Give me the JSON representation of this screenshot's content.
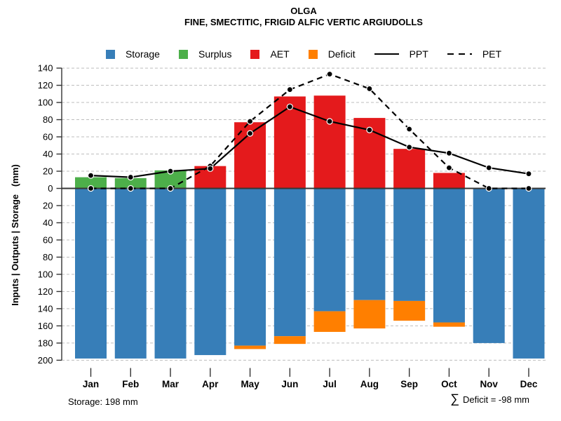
{
  "header": {
    "title": "OLGA",
    "subtitle": "FINE, SMECTITIC, FRIGID ALFIC VERTIC ARGIUDOLLS"
  },
  "legend": {
    "items": [
      {
        "label": "Storage",
        "swatch": "square",
        "color": "#377EB8"
      },
      {
        "label": "Surplus",
        "swatch": "square",
        "color": "#4DAF4A"
      },
      {
        "label": "AET",
        "swatch": "square",
        "color": "#E41A1C"
      },
      {
        "label": "Deficit",
        "swatch": "square",
        "color": "#FF7F00"
      },
      {
        "label": "PPT",
        "swatch": "solid-line",
        "color": "#000000"
      },
      {
        "label": "PET",
        "swatch": "dashed-line",
        "color": "#000000"
      }
    ]
  },
  "footer": {
    "left": "Storage: 198 mm",
    "right_sigma": "∑",
    "right_text": "Deficit = -98 mm"
  },
  "chart_data": {
    "type": "bar",
    "subtype": "diverging-stacked-bars-with-lines",
    "categories": [
      "Jan",
      "Feb",
      "Mar",
      "Apr",
      "May",
      "Jun",
      "Jul",
      "Aug",
      "Sep",
      "Oct",
      "Nov",
      "Dec"
    ],
    "series": [
      {
        "name": "AET",
        "direction": "up",
        "stack_order": 0,
        "color": "#E41A1C",
        "values": [
          0,
          0,
          0,
          26,
          77,
          107,
          108,
          82,
          46,
          18,
          0,
          0
        ]
      },
      {
        "name": "Surplus",
        "direction": "up",
        "stack_order": 1,
        "color": "#4DAF4A",
        "values": [
          13,
          12,
          21,
          0,
          0,
          0,
          0,
          0,
          0,
          0,
          0,
          0
        ]
      },
      {
        "name": "Storage",
        "direction": "down",
        "stack_order": 0,
        "color": "#377EB8",
        "values": [
          198,
          198,
          198,
          194,
          183,
          172,
          143,
          130,
          131,
          156,
          180,
          198
        ]
      },
      {
        "name": "Deficit",
        "direction": "down",
        "stack_order": 1,
        "color": "#FF7F00",
        "values": [
          0,
          0,
          0,
          0,
          4,
          9,
          24,
          33,
          23,
          5,
          0,
          0
        ]
      }
    ],
    "lines": [
      {
        "name": "PPT",
        "style": "solid",
        "color": "#000000",
        "values": [
          15,
          13,
          20,
          23,
          64,
          95,
          78,
          68,
          48,
          41,
          24,
          17
        ]
      },
      {
        "name": "PET",
        "style": "dashed",
        "color": "#000000",
        "values": [
          0,
          0,
          0,
          26,
          78,
          115,
          133,
          116,
          69,
          24,
          0,
          0
        ]
      }
    ],
    "ylabel": "Inputs | Outputs | Storage   (mm)",
    "y_axis": {
      "up_max": 140,
      "down_max": 200,
      "tick_step": 20,
      "grid": true,
      "mirrored_labels": true
    },
    "grid_color": "#BDBDBD",
    "axis_color": "#333333",
    "zero_line_color": "#363636",
    "point_fill": "#000000",
    "point_ring": "#FFFFFF"
  }
}
